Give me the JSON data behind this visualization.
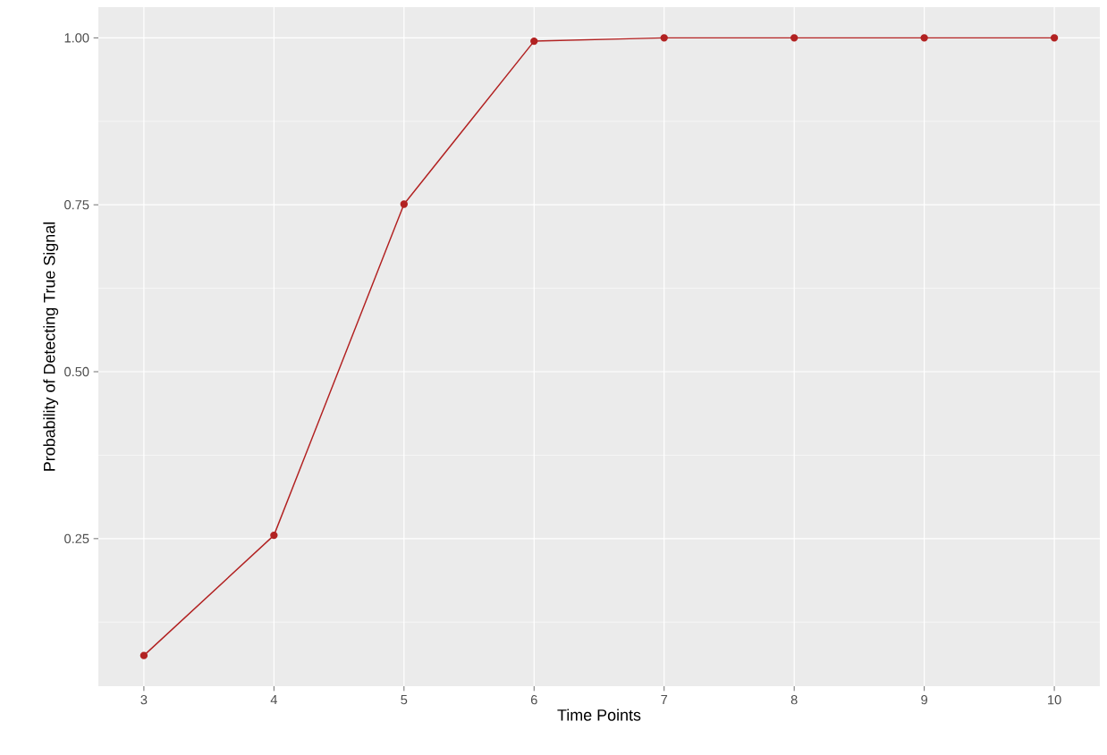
{
  "chart_data": {
    "type": "line",
    "xlabel": "Time Points",
    "ylabel": "Probability of Detecting True Signal",
    "x": [
      3,
      4,
      5,
      6,
      7,
      8,
      9,
      10
    ],
    "series": [
      {
        "color": "#b22222",
        "values": [
          0.075,
          0.255,
          0.751,
          0.995,
          1.0,
          1.0,
          1.0,
          1.0
        ]
      }
    ],
    "xlim": [
      2.65,
      10.35
    ],
    "ylim": [
      0.029,
      1.046
    ],
    "xticks": [
      3,
      4,
      5,
      6,
      7,
      8,
      9,
      10
    ],
    "yticks": [
      {
        "value": 0.25,
        "label": "0.25"
      },
      {
        "value": 0.5,
        "label": "0.50"
      },
      {
        "value": 0.75,
        "label": "0.75"
      },
      {
        "value": 1.0,
        "label": "1.00"
      }
    ],
    "grid": true,
    "marker": "circle",
    "line_style": "solid"
  }
}
